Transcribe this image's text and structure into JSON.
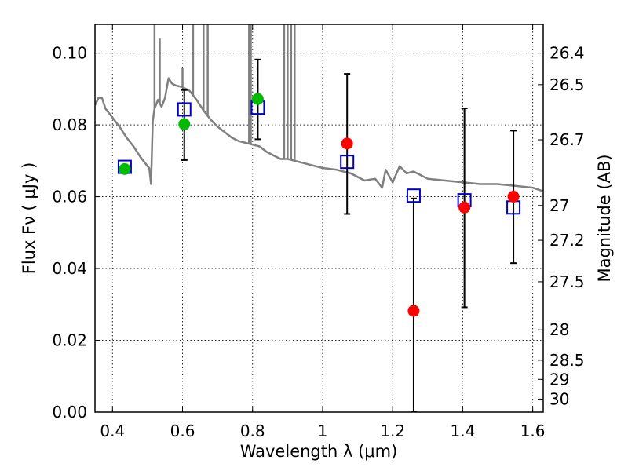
{
  "chart_data": {
    "type": "scatter",
    "title": "",
    "xlabel": "Wavelength  λ (μm)",
    "ylabel": "Flux  Fν  ( μJy )",
    "ylabel_right": "Magnitude (AB)",
    "xlim": [
      0.35,
      1.63
    ],
    "ylim": [
      0.0,
      0.108
    ],
    "grid": true,
    "x_ticks": [
      0.4,
      0.6,
      0.8,
      1.0,
      1.2,
      1.4,
      1.6
    ],
    "x_tick_labels": [
      "0.4",
      "0.6",
      "0.8",
      "1",
      "1.2",
      "1.4",
      "1.6"
    ],
    "y_ticks": [
      0.0,
      0.02,
      0.04,
      0.06,
      0.08,
      0.1
    ],
    "y_tick_labels": [
      "0.00",
      "0.02",
      "0.04",
      "0.06",
      "0.08",
      "0.10"
    ],
    "mag_ticks": [
      "26.4",
      "26.5",
      "26.7",
      "27",
      "27.2",
      "27.5",
      "28",
      "28.5",
      "29",
      "30"
    ],
    "colors": {
      "template": "#808080",
      "model": "#0000cc",
      "green_points": "#00bb00",
      "red_points": "#ff0000",
      "errorbar": "#000000"
    },
    "series": [
      {
        "name": "template spectrum",
        "kind": "line",
        "x": [
          0.35,
          0.36,
          0.37,
          0.38,
          0.4,
          0.42,
          0.44,
          0.46,
          0.48,
          0.5,
          0.505,
          0.51,
          0.515,
          0.52,
          0.53,
          0.54,
          0.55,
          0.56,
          0.57,
          0.58,
          0.6,
          0.62,
          0.64,
          0.66,
          0.68,
          0.7,
          0.72,
          0.74,
          0.76,
          0.78,
          0.8,
          0.82,
          0.84,
          0.86,
          0.88,
          0.9,
          0.92,
          0.94,
          0.96,
          1.0,
          1.04,
          1.08,
          1.1,
          1.12,
          1.15,
          1.17,
          1.18,
          1.2,
          1.22,
          1.24,
          1.26,
          1.3,
          1.35,
          1.4,
          1.45,
          1.5,
          1.55,
          1.6,
          1.63
        ],
        "y": [
          0.0855,
          0.0875,
          0.0875,
          0.0845,
          0.082,
          0.0795,
          0.0765,
          0.074,
          0.071,
          0.0685,
          0.068,
          0.0635,
          0.081,
          0.0845,
          0.087,
          0.085,
          0.0875,
          0.093,
          0.0915,
          0.091,
          0.0905,
          0.0895,
          0.087,
          0.084,
          0.0815,
          0.0795,
          0.078,
          0.0765,
          0.0755,
          0.075,
          0.0745,
          0.074,
          0.0725,
          0.0715,
          0.0705,
          0.0705,
          0.07,
          0.0695,
          0.069,
          0.068,
          0.0675,
          0.0665,
          0.0655,
          0.0645,
          0.065,
          0.0625,
          0.0675,
          0.064,
          0.0685,
          0.0665,
          0.067,
          0.065,
          0.0645,
          0.064,
          0.0635,
          0.0635,
          0.063,
          0.0625,
          0.0615
        ],
        "spikes": [
          {
            "x": 0.52,
            "top": 0.108
          },
          {
            "x": 0.535,
            "top": 0.104
          },
          {
            "x": 0.6,
            "top": 0.096
          },
          {
            "x": 0.63,
            "top": 0.108
          },
          {
            "x": 0.66,
            "top": 0.108
          },
          {
            "x": 0.672,
            "top": 0.108
          },
          {
            "x": 0.79,
            "top": 0.108
          },
          {
            "x": 0.795,
            "top": 0.108
          },
          {
            "x": 0.89,
            "top": 0.108
          },
          {
            "x": 0.9,
            "top": 0.108
          },
          {
            "x": 0.91,
            "top": 0.108
          },
          {
            "x": 0.92,
            "top": 0.108
          }
        ]
      },
      {
        "name": "model photometry",
        "kind": "square",
        "x": [
          0.435,
          0.605,
          0.815,
          1.07,
          1.26,
          1.405,
          1.545
        ],
        "y": [
          0.0683,
          0.0843,
          0.0848,
          0.0697,
          0.0603,
          0.059,
          0.057
        ]
      },
      {
        "name": "green observed points",
        "kind": "circle",
        "color": "green",
        "x": [
          0.435,
          0.605,
          0.815
        ],
        "y": [
          0.0677,
          0.0802,
          0.0872
        ]
      },
      {
        "name": "red observed points",
        "kind": "circle",
        "color": "red",
        "x": [
          1.07,
          1.26,
          1.405,
          1.545
        ],
        "y": [
          0.0748,
          0.0282,
          0.057,
          0.06
        ]
      },
      {
        "name": "error bars",
        "kind": "errorbar",
        "x": [
          0.605,
          0.815,
          1.07,
          1.26,
          1.405,
          1.545
        ],
        "low": [
          0.0702,
          0.076,
          0.0552,
          0.0,
          0.0292,
          0.0415
        ],
        "high": [
          0.0897,
          0.0982,
          0.0942,
          0.0595,
          0.0846,
          0.0784
        ]
      }
    ]
  }
}
